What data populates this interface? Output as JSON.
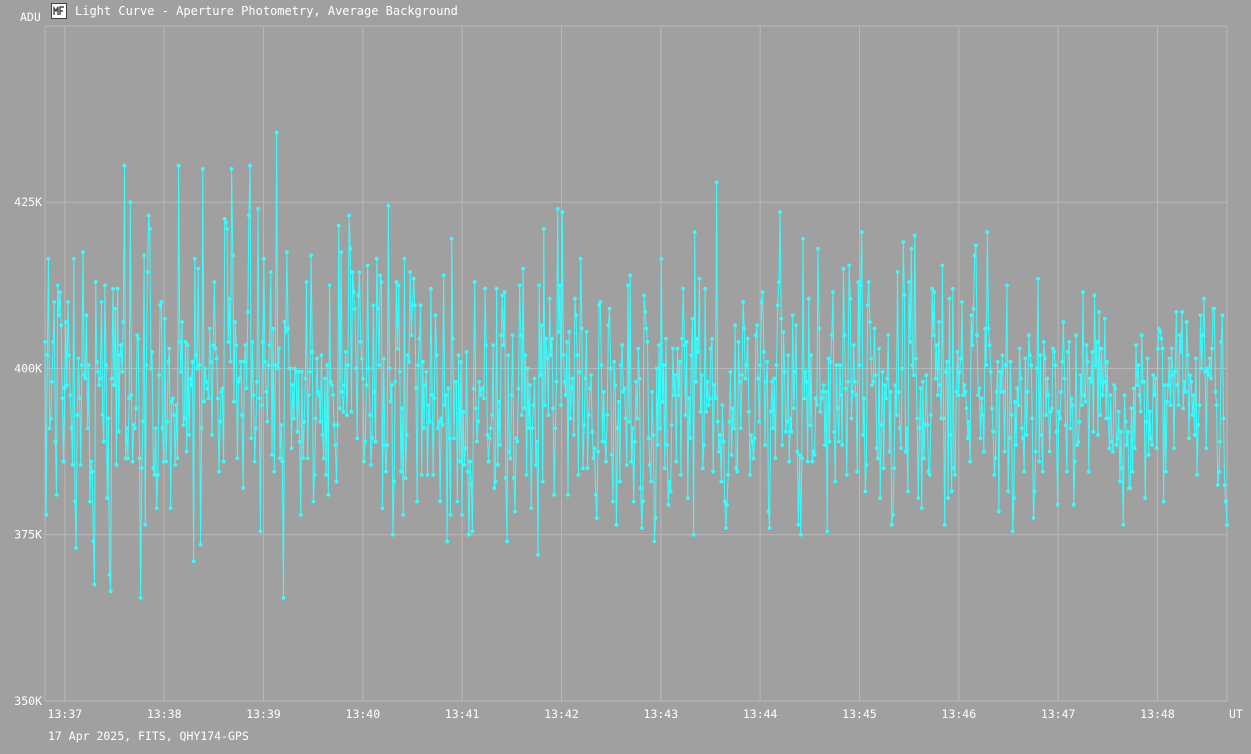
{
  "window": {
    "title": "Light Curve - Aperture Photometry, Average Background",
    "icon": "chart-app-icon"
  },
  "footer": {
    "text": "17 Apr 2025, FITS, QHY174-GPS"
  },
  "colors": {
    "background": "#a0a0a0",
    "grid": "#b8b8b8",
    "series": "#33ffff",
    "text": "#ffffff"
  },
  "chart_data": {
    "type": "line",
    "title": "Light Curve - Aperture Photometry, Average Background",
    "xlabel": "UT",
    "ylabel": "ADU",
    "grid": true,
    "xlim": [
      "13:36:48",
      "13:48:42"
    ],
    "ylim": [
      350000,
      451500
    ],
    "x_ticks": [
      "13:37",
      "13:38",
      "13:39",
      "13:40",
      "13:41",
      "13:42",
      "13:43",
      "13:44",
      "13:45",
      "13:46",
      "13:47",
      "13:48"
    ],
    "y_ticks": [
      {
        "value": 350000,
        "label": "350K"
      },
      {
        "value": 375000,
        "label": "375K"
      },
      {
        "value": 400000,
        "label": "400K"
      },
      {
        "value": 425000,
        "label": "425K"
      }
    ],
    "series": [
      {
        "time_start": "13:36:48",
        "time_end": "13:48:42",
        "values": [
          404000,
          378000,
          402000,
          416500,
          391000,
          392500,
          398000,
          404000,
          410000,
          389000,
          381000,
          412500,
          408000,
          411500,
          406500,
          395500,
          386000,
          397000,
          407000,
          397500,
          410000,
          402000,
          396000,
          391000,
          385500,
          416500,
          380000,
          373000,
          393000,
          401500,
          395500,
          385500,
          400500,
          417500,
          399000,
          398500,
          408000,
          391000,
          400500,
          380000,
          386000,
          384500,
          374000,
          367500,
          413000,
          401000,
          399500,
          397500,
          398500,
          410000,
          393000,
          389000,
          412500,
          400500,
          380500,
          392500,
          369000,
          366500,
          398500,
          412000,
          397500,
          409000,
          385500,
          412000,
          390500,
          402000,
          403500,
          399500,
          407000,
          430500,
          386500,
          391000,
          386500,
          395500,
          425000,
          396000,
          386000,
          391500,
          391000,
          394000,
          405000,
          404500,
          386500,
          365500,
          385000,
          392000,
          417000,
          376500,
          400500,
          414500,
          423000,
          421000,
          400000,
          402500,
          385000,
          384000,
          391000,
          379000,
          384000,
          399000,
          409500,
          410000,
          391000,
          386000,
          407500,
          386000,
          392000,
          401000,
          403000,
          379000,
          395000,
          395500,
          393000,
          385500,
          394500,
          386500,
          430500,
          404000,
          399500,
          407000,
          391500,
          392500,
          404000,
          387500,
          403500,
          390000,
          398500,
          397500,
          401000,
          371000,
          416500,
          402000,
          400000,
          415000,
          400500,
          373500,
          391000,
          430000,
          395000,
          400000,
          398000,
          397000,
          395500,
          406000,
          401000,
          390000,
          403500,
          413000,
          403000,
          401500,
          395500,
          384500,
          392000,
          396500,
          397000,
          386000,
          422500,
          422000,
          421000,
          404000,
          410500,
          401000,
          430000,
          417000,
          395000,
          407000,
          403500,
          386500,
          398000,
          398500,
          401000,
          393000,
          382000,
          401000,
          403500,
          397000,
          408500,
          423000,
          430500,
          389500,
          404000,
          396000,
          386000,
          391000,
          398000,
          424000,
          395500,
          375500,
          394500,
          404000,
          416500,
          401000,
          396500,
          392000,
          400500,
          403500,
          414500,
          387000,
          406000,
          384500,
          400500,
          435500,
          400000,
          403000,
          386500,
          391500,
          386000,
          365500,
          407000,
          405500,
          417500,
          406000,
          400000,
          400000,
          388000,
          397500,
          392500,
          400000,
          399500,
          390500,
          399500,
          389000,
          378000,
          399500,
          386500,
          392000,
          398500,
          413000,
          386500,
          396000,
          399500,
          417000,
          402500,
          380000,
          384000,
          392500,
          401500,
          396500,
          396000,
          392000,
          402000,
          390000,
          386500,
          398500,
          384000,
          400500,
          381000,
          412500,
          398000,
          397500,
          396000,
          391500,
          388500,
          383000,
          391500,
          421500,
          394000,
          417500,
          396500,
          393500,
          397500,
          402500,
          393000,
          400500,
          423000,
          418000,
          393500,
          414500,
          411500,
          409000,
          400000,
          389500,
          411000,
          414500,
          404000,
          401500,
          398500,
          386000,
          389000,
          397500,
          415500,
          400000,
          393000,
          385500,
          389500,
          409500,
          396500,
          389000,
          416500,
          409000,
          400500,
          414000,
          413000,
          379000,
          401500,
          388500,
          384500,
          388500,
          424500,
          400000,
          395000,
          397500,
          375000,
          383000,
          398000,
          413000,
          403000,
          412500,
          399500,
          384500,
          394000,
          378000,
          416500,
          383500,
          390000,
          402000,
          401000,
          414500,
          405000,
          409500,
          413500,
          409500,
          397000,
          380000,
          400500,
          404500,
          409500,
          384000,
          401000,
          391000,
          397500,
          399500,
          384000,
          394500,
          392000,
          412000,
          396000,
          384000,
          395500,
          408000,
          402000,
          391000,
          392000,
          380000,
          392500,
          391500,
          414000,
          394500,
          396000,
          374000,
          397000,
          389500,
          378000,
          419500,
          404500,
          389500,
          398000,
          398000,
          380000,
          402000,
          386000,
          401000,
          378000,
          393500,
          385500,
          388000,
          402500,
          384500,
          375000,
          386000,
          382500,
          375500,
          397000,
          413000,
          394000,
          389000,
          392000,
          398000,
          396000,
          397000,
          397000,
          395500,
          412000,
          403500,
          390000,
          386000,
          389500,
          391000,
          393000,
          403500,
          382000,
          383000,
          412000,
          385500,
          395000,
          388500,
          405000,
          411000,
          403500,
          411500,
          383500,
          374000,
          402000,
          387500,
          386500,
          396000,
          405000,
          383500,
          378500,
          389500,
          389000,
          397000,
          412500,
          405000,
          393000,
          415000,
          394000,
          402000,
          384000,
          400000,
          391000,
          397500,
          379000,
          391000,
          394500,
          398500,
          385500,
          389000,
          372000,
          412500,
          399000,
          406500,
          383000,
          421000,
          394500,
          404500,
          401500,
          393000,
          410500,
          402000,
          404500,
          394000,
          381000,
          391000,
          398000,
          424000,
          405500,
          412500,
          394500,
          423500,
          402000,
          398000,
          396000,
          404000,
          381000,
          405500,
          392500,
          397000,
          398500,
          390000,
          410500,
          408000,
          402000,
          384000,
          399500,
          416500,
          406000,
          385000,
          391500,
          398500,
          405500,
          385000,
          393000,
          397000,
          399000,
          390500,
          386500,
          388000,
          381000,
          377500,
          387500,
          409500,
          410000,
          400500,
          389000,
          396500,
          389000,
          386000,
          393000,
          406500,
          409000,
          400000,
          387000,
          380000,
          401000,
          397500,
          376500,
          391000,
          395000,
          383000,
          400500,
          403500,
          396500,
          397000,
          392500,
          385500,
          412500,
          392000,
          414000,
          386000,
          391000,
          380000,
          389000,
          398000,
          392500,
          403000,
          398500,
          382000,
          376000,
          380000,
          411000,
          408500,
          406000,
          404000,
          389500,
          385500,
          383000,
          396500,
          390000,
          374000,
          377500,
          400000,
          388500,
          403500,
          391000,
          416500,
          395000,
          400500,
          385000,
          404500,
          388500,
          379500,
          383000,
          381500,
          391500,
          403000,
          396000,
          399000,
          386000,
          403000,
          396000,
          401000,
          384000,
          404500,
          412000,
          403500,
          393000,
          404000,
          380500,
          395500,
          389500,
          402000,
          407500,
          375000,
          420500,
          398000,
          404500,
          402500,
          413500,
          393500,
          399000,
          385000,
          388500,
          412000,
          393500,
          398000,
          394500,
          395500,
          403000,
          404500,
          384500,
          397500,
          395500,
          428000,
          392000,
          387500,
          390000,
          383000,
          394500,
          389000,
          380000,
          376000,
          379500,
          384000,
          392000,
          399500,
          387000,
          394000,
          391000,
          406500,
          385000,
          384500,
          404000,
          398000,
          391000,
          399000,
          410000,
          406000,
          398500,
          400500,
          404500,
          393500,
          384000,
          390000,
          389000,
          386500,
          389500,
          405000,
          406500,
          398500,
          392000,
          400500,
          410000,
          411500,
          402500,
          388500,
          398000,
          401000,
          378500,
          376000,
          393500,
          398000,
          391000,
          398500,
          386500,
          400500,
          409500,
          413000,
          423500,
          407500,
          388500,
          405500,
          399500,
          390500,
          392000,
          402000,
          386000,
          392500,
          390500,
          408000,
          394000,
          399500,
          406500,
          387500,
          376500,
          387000,
          375000,
          386500,
          419500,
          395500,
          399500,
          398000,
          386000,
          410500,
          391500,
          402000,
          386000,
          387500,
          387000,
          395500,
          394500,
          418000,
          406000,
          393500,
          395500,
          396500,
          397500,
          388500,
          396500,
          375500,
          401500,
          389000,
          401000,
          405000,
          411500,
          390500,
          383000,
          400500,
          394000,
          389000,
          400500,
          396000,
          388500,
          415000,
          405000,
          397000,
          384000,
          398000,
          415500,
          410500,
          392500,
          396500,
          403500,
          398000,
          396000,
          384500,
          413000,
          400500,
          412500,
          420500,
          390000,
          395500,
          381500,
          385500,
          409500,
          413000,
          407000,
          401500,
          397500,
          398000,
          406000,
          399000,
          388000,
          386500,
          403000,
          380500,
          391500,
          399500,
          385000,
          397500,
          395500,
          398500,
          405000,
          387500,
          396500,
          376500,
          378000,
          385000,
          397500,
          393000,
          414500,
          396500,
          391000,
          388000,
          400000,
          419000,
          411000,
          387500,
          391000,
          381500,
          413000,
          404000,
          418000,
          400500,
          399000,
          420000,
          401500,
          392500,
          380500,
          391000,
          397000,
          379000,
          398000,
          386500,
          391500,
          399000,
          391500,
          384500,
          384000,
          393000,
          412000,
          405000,
          411500,
          398500,
          403500,
          396000,
          407000,
          397500,
          392500,
          415500,
          392500,
          376500,
          399500,
          401000,
          380500,
          410500,
          390000,
          381500,
          412000,
          385000,
          384000,
          396500,
          402500,
          396000,
          399500,
          401500,
          410000,
          396000,
          397500,
          396500,
          394000,
          389500,
          392000,
          386000,
          408000,
          403500,
          409000,
          417000,
          418500,
          405000,
          396000,
          397000,
          389500,
          395500,
          393000,
          387500,
          406000,
          400500,
          420500,
          406000,
          403500,
          399500,
          394000,
          390500,
          384000,
          386500,
          396500,
          401000,
          378500,
          399500,
          396500,
          402000,
          396500,
          387500,
          400500,
          412500,
          381500,
          389500,
          401000,
          393000,
          375500,
          380500,
          395000,
          388500,
          397000,
          394500,
          403000,
          398500,
          391000,
          389500,
          384500,
          401500,
          390000,
          396500,
          405000,
          402000,
          400500,
          392500,
          377500,
          381500,
          387500,
          400000,
          413500,
          386000,
          402000,
          390000,
          384500,
          404000,
          401500,
          393000,
          398500,
          396000,
          387500,
          393500,
          394000,
          403000,
          402500,
          400500,
          390500,
          379500,
          393500,
          392500,
          396500,
          401000,
          407000,
          398500,
          391500,
          384500,
          402500,
          404000,
          391000,
          395500,
          394500,
          379500,
          386000,
          405000,
          388500,
          389000,
          392000,
          399000,
          394500,
          411500,
          396000,
          395000,
          403500,
          401000,
          384500,
          398500,
          398000,
          402500,
          390500,
          411000,
          400500,
          404000,
          390000,
          408500,
          393000,
          403000,
          396000,
          398000,
          407500,
          392500,
          401000,
          392500,
          388000,
          396000,
          389000,
          387500,
          397500,
          397000,
          388500,
          389500,
          393500,
          383000,
          390500,
          385000,
          376500,
          396000,
          392000,
          388500,
          390500,
          382000,
          382000,
          394000,
          384500,
          397000,
          388000,
          403500,
          397500,
          400500,
          396000,
          393500,
          405000,
          398000,
          398000,
          380500,
          392000,
          401500,
          387000,
          393500,
          389500,
          388500,
          399000,
          396000,
          398500,
          388000,
          403000,
          406000,
          405500,
          404500,
          403000,
          380000,
          397500,
          384500,
          395000,
          397500,
          401500,
          394500,
          403000,
          399000,
          388000,
          399500,
          408500,
          397500,
          394500,
          405000,
          402500,
          408500,
          394000,
          398000,
          396500,
          407000,
          402000,
          389500,
          399000,
          398000,
          393000,
          396000,
          390000,
          401500,
          384000,
          391500,
          394500,
          408000,
          400000,
          405000,
          410500,
          399500,
          388000,
          400000,
          399000,
          401500,
          398500,
          403000,
          409000,
          409000,
          396500,
          394500,
          382500,
          384500,
          389000,
          404000,
          408000,
          392500,
          382500,
          380000,
          376500
        ]
      }
    ]
  }
}
